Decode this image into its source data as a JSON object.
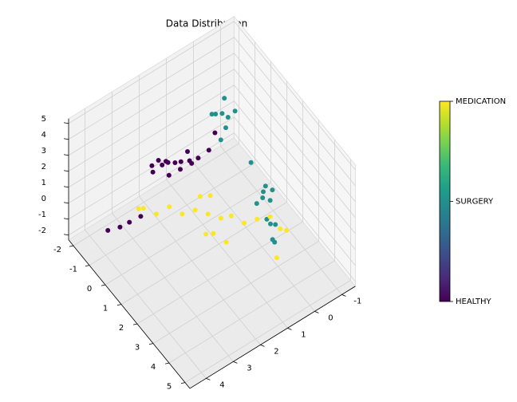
{
  "chart_data": {
    "type": "scatter3d",
    "title": "Data Distribution",
    "x": [
      -0.9,
      -0.5,
      -1.2,
      -0.3,
      -1.5,
      -0.7,
      -1.0,
      -0.2,
      -1.3,
      -0.6,
      -0.8,
      -1.1,
      -0.4,
      -1.6,
      -0.95,
      -0.7,
      -1.2,
      -0.5,
      0.2,
      -0.1,
      -0.5,
      -0.2,
      -0.8,
      -0.4,
      -0.1,
      -0.7,
      -0.3,
      0.1,
      1.4,
      1.7,
      1.2,
      2.0,
      1.5,
      2.3,
      2.7,
      3.0,
      3.3,
      1.8,
      2.5,
      0.8,
      1.0,
      1.3,
      0.7,
      1.6,
      0.4,
      1.9,
      0.1,
      2.2,
      -0.2,
      2.5,
      -0.5,
      2.8,
      -0.8,
      3.2,
      1.2,
      0.8,
      1.5,
      0.5,
      1.8,
      3.6
    ],
    "y": [
      1.5,
      1.2,
      1.8,
      1.0,
      2.0,
      1.4,
      1.7,
      1.3,
      1.6,
      1.9,
      1.1,
      2.2,
      1.6,
      1.7,
      3.5,
      3.3,
      3.8,
      3.0,
      0.9,
      0.5,
      0.0,
      -0.3,
      0.2,
      0.3,
      0.1,
      -0.2,
      -0.1,
      0.4,
      -0.4,
      -0.2,
      -0.6,
      -0.3,
      -0.1,
      0.0,
      0.1,
      0.2,
      0.3,
      -0.5,
      -0.2,
      -0.3,
      1.4,
      1.1,
      1.7,
      0.9,
      2.0,
      0.6,
      2.3,
      0.3,
      2.6,
      0.0,
      2.9,
      -0.2,
      2.9,
      -0.2,
      1.6,
      1.2,
      1.5,
      1.4,
      1.2,
      0.4
    ],
    "z": [
      1.0,
      1.3,
      0.8,
      1.5,
      0.6,
      1.2,
      1.1,
      1.6,
      0.7,
      1.0,
      1.4,
      0.9,
      1.3,
      0.5,
      -1.0,
      -0.6,
      -1.2,
      -0.3,
      2.5,
      2.8,
      3.0,
      3.2,
      2.8,
      3.4,
      2.7,
      3.5,
      2.9,
      2.5,
      0.0,
      0.2,
      -0.1,
      0.3,
      -0.3,
      -0.2,
      0.1,
      -0.4,
      -0.1,
      0.5,
      -0.5,
      1.2,
      0.0,
      -0.2,
      0.2,
      0.1,
      -0.1,
      -0.3,
      0.3,
      0.0,
      -0.2,
      0.2,
      0.1,
      -0.4,
      -0.3,
      0.0,
      -0.8,
      0.7,
      -0.5,
      0.5,
      -1.0,
      -0.6
    ],
    "c": [
      0,
      0,
      0,
      0,
      0,
      0,
      0,
      0,
      0,
      0,
      0,
      0,
      0,
      0,
      0,
      0,
      0,
      0,
      0,
      0,
      1,
      1,
      1,
      1,
      1,
      1,
      1,
      1,
      1,
      1,
      1,
      1,
      1,
      1,
      1,
      1,
      1,
      1,
      1,
      1,
      2,
      2,
      2,
      2,
      2,
      2,
      2,
      2,
      2,
      2,
      2,
      2,
      2,
      2,
      2,
      2,
      2,
      2,
      2,
      2
    ],
    "colormap": "viridis",
    "xlim": [
      -2.3,
      5.3
    ],
    "ylim": [
      -1.5,
      4.6
    ],
    "zlim": [
      -2.3,
      5.3
    ],
    "xticks": [
      -2,
      -1,
      0,
      1,
      2,
      3,
      4,
      5
    ],
    "yticks": [
      -1,
      0,
      1,
      2,
      3,
      4
    ],
    "zticks": [
      -2,
      -1,
      0,
      1,
      2,
      3,
      4,
      5
    ],
    "grid": true,
    "colorbar": {
      "clim": [
        0,
        2
      ],
      "ticks": [
        {
          "value": 0,
          "label": "HEALTHY"
        },
        {
          "value": 1,
          "label": "SURGERY"
        },
        {
          "value": 2,
          "label": "MEDICATION"
        }
      ]
    }
  }
}
